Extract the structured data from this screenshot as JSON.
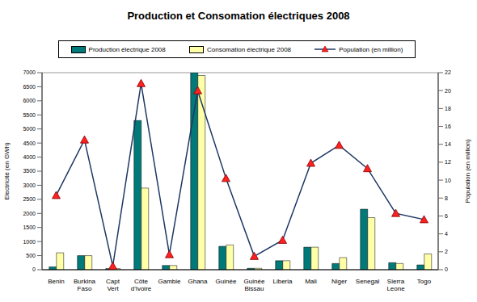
{
  "chart_data": {
    "type": "bar",
    "title": "Production et Consomation électriques 2008",
    "categories": [
      "Benin",
      "Burkina Faso",
      "Capt Vert",
      "Côte d'Ivoire",
      "Gambie",
      "Ghana",
      "Guinée",
      "Guinée Bissau",
      "Liberia",
      "Mali",
      "Niger",
      "Senegal",
      "Sierra Leone",
      "Togo"
    ],
    "series": [
      {
        "name": "Production électrique 2008",
        "type": "bar",
        "color": "#007a78",
        "values": [
          100,
          500,
          40,
          5300,
          150,
          7000,
          830,
          50,
          320,
          800,
          220,
          2150,
          250,
          170
        ]
      },
      {
        "name": "Consomation électrique 2008",
        "type": "bar",
        "color": "#ffffa8",
        "values": [
          600,
          500,
          40,
          2900,
          150,
          6900,
          880,
          50,
          320,
          800,
          430,
          1850,
          220,
          560
        ]
      },
      {
        "name": "Population (en million)",
        "type": "line",
        "axis": "y2",
        "color": "#1f3864",
        "marker": "triangle",
        "values": [
          8.3,
          14.5,
          0.4,
          20.8,
          1.7,
          20,
          10.2,
          1.5,
          3.3,
          11.9,
          13.9,
          11.3,
          6.3,
          5.6
        ]
      }
    ],
    "y_label": "Electricité (en GWh)",
    "y2_label": "Population (en million)",
    "ylim": [
      0,
      7000
    ],
    "yticks": [
      0,
      500,
      1000,
      1500,
      2000,
      2500,
      3000,
      3500,
      4000,
      4500,
      5000,
      5500,
      6000,
      6500,
      7000
    ],
    "y2lim": [
      0,
      22
    ],
    "y2ticks": [
      0,
      2,
      4,
      6,
      8,
      10,
      12,
      14,
      16,
      18,
      20,
      22
    ],
    "grid": true,
    "legend": "top"
  }
}
